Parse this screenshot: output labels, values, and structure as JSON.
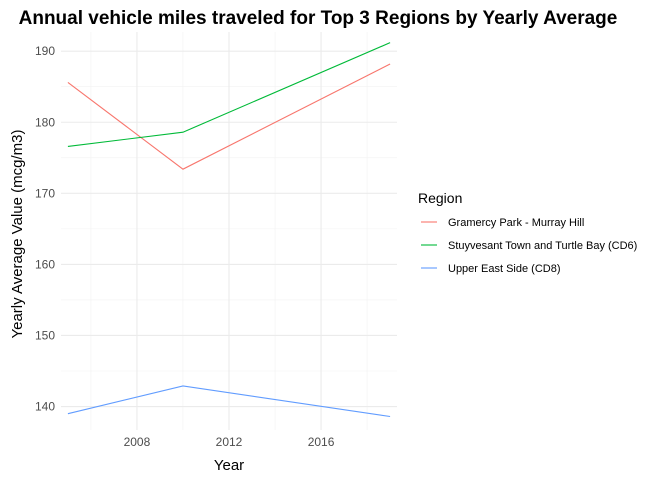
{
  "chart_data": {
    "type": "line",
    "title": "Annual vehicle miles traveled for Top 3 Regions by Yearly Average",
    "xlabel": "Year",
    "ylabel": "Yearly Average Value (mcg/m3)",
    "xlim": [
      2004.7,
      2019.3
    ],
    "ylim": [
      136.7,
      192.7
    ],
    "x_ticks": [
      "2008",
      "2012",
      "2016"
    ],
    "y_ticks": [
      "140",
      "150",
      "160",
      "170",
      "180",
      "190"
    ],
    "grid": true,
    "legend": {
      "title": "Region",
      "placement": "right"
    },
    "x": [
      2005,
      2010,
      2019
    ],
    "series": [
      {
        "name": "Gramercy Park - Murray Hill",
        "color": "#F8766D",
        "values": [
          185.6,
          173.4,
          188.2
        ]
      },
      {
        "name": "Stuyvesant Town and Turtle Bay (CD6)",
        "color": "#00BA38",
        "values": [
          176.6,
          178.6,
          191.2
        ]
      },
      {
        "name": "Upper East Side (CD8)",
        "color": "#619CFF",
        "values": [
          139.0,
          142.9,
          138.6
        ]
      }
    ]
  }
}
